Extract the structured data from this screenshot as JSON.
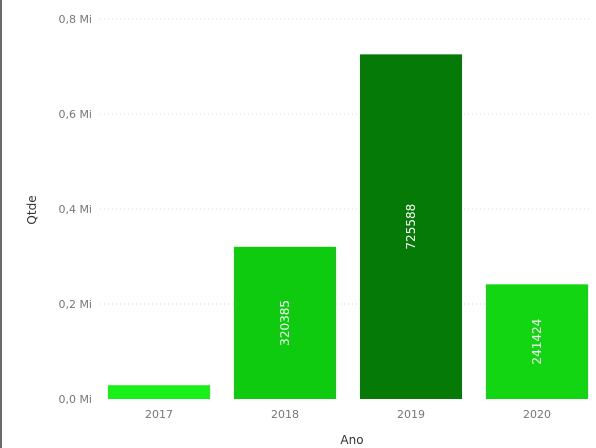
{
  "chart_data": {
    "type": "bar",
    "categories": [
      "2017",
      "2018",
      "2019",
      "2020"
    ],
    "values": [
      29000,
      320385,
      725588,
      241424
    ],
    "data_labels": [
      "",
      "320385",
      "725588",
      "241424"
    ],
    "colors": [
      "#19ef19",
      "#0fcb0f",
      "#067a06",
      "#13d613"
    ],
    "title": "",
    "xlabel": "Ano",
    "ylabel": "Qtde",
    "ylim": [
      0,
      800000
    ],
    "yticks": [
      0,
      200000,
      400000,
      600000,
      800000
    ],
    "ytick_labels": [
      "0,0 Mi",
      "0,2 Mi",
      "0,4 Mi",
      "0,6 Mi",
      "0,8 Mi"
    ],
    "grid": true,
    "legend": "none"
  }
}
